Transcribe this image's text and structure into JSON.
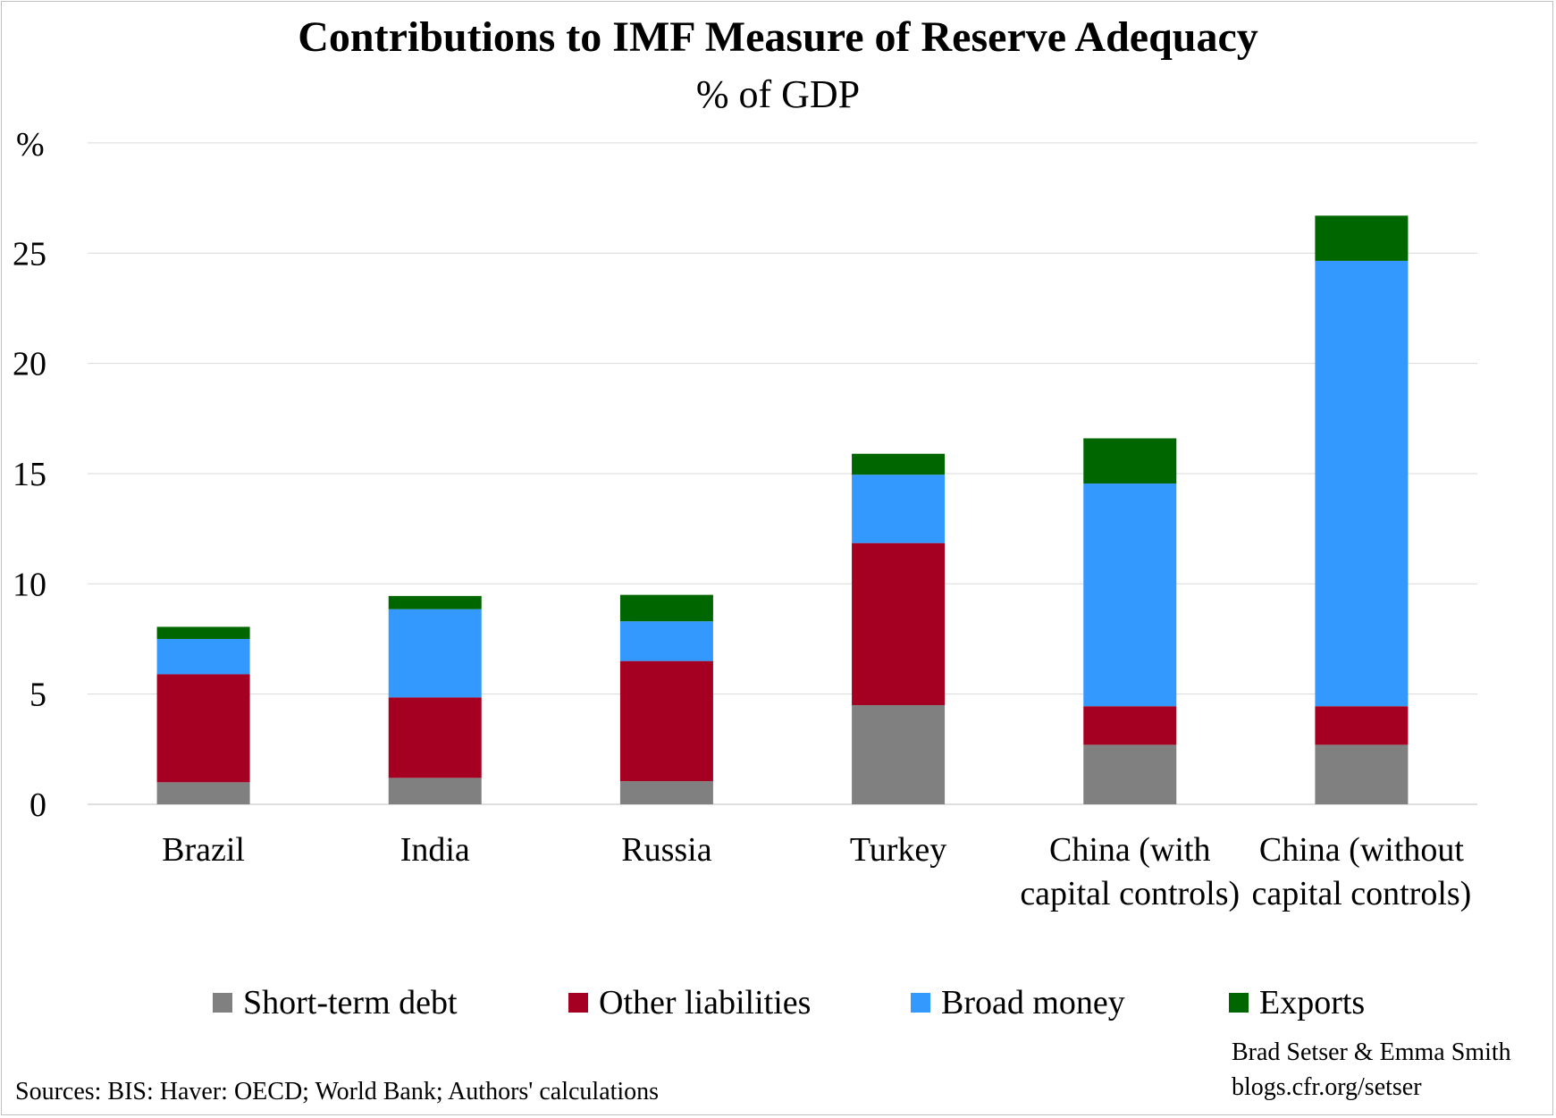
{
  "title": "Contributions to IMF Measure of Reserve Adequacy",
  "subtitle": "% of GDP",
  "credit": {
    "line1": "Brad Setser & Emma Smith",
    "line2": "blogs.cfr.org/setser"
  },
  "source": "Sources: BIS: Haver: OECD; World Bank; Authors' calculations",
  "colors": {
    "short_term_debt": "#808080",
    "other_liabilities": "#a50021",
    "broad_money": "#3399ff",
    "exports": "#006600",
    "gridline": "#d9d9d9",
    "axis": "#bfbfbf"
  },
  "chart_data": {
    "type": "bar",
    "stacked": true,
    "title": "Contributions to IMF Measure of Reserve Adequacy",
    "subtitle": "% of GDP",
    "ylabel": "%",
    "ylim": [
      0,
      30
    ],
    "yticks": [
      0,
      5,
      10,
      15,
      20,
      25
    ],
    "grid": true,
    "legend_position": "bottom",
    "categories": [
      [
        "Brazil"
      ],
      [
        "India"
      ],
      [
        "Russia"
      ],
      [
        "Turkey"
      ],
      [
        "China (with",
        "capital controls)"
      ],
      [
        "China (without",
        "capital controls)"
      ]
    ],
    "series": [
      {
        "name": "Short-term debt",
        "color": "#808080",
        "values": [
          1.0,
          1.2,
          1.05,
          4.5,
          2.7,
          2.7
        ]
      },
      {
        "name": "Other liabilities",
        "color": "#a50021",
        "values": [
          4.9,
          3.65,
          5.45,
          7.35,
          1.75,
          1.75
        ]
      },
      {
        "name": "Broad money",
        "color": "#3399ff",
        "values": [
          1.6,
          4.0,
          1.8,
          3.1,
          10.1,
          20.2
        ]
      },
      {
        "name": "Exports",
        "color": "#006600",
        "values": [
          0.55,
          0.6,
          1.2,
          0.95,
          2.05,
          2.05
        ]
      }
    ]
  }
}
